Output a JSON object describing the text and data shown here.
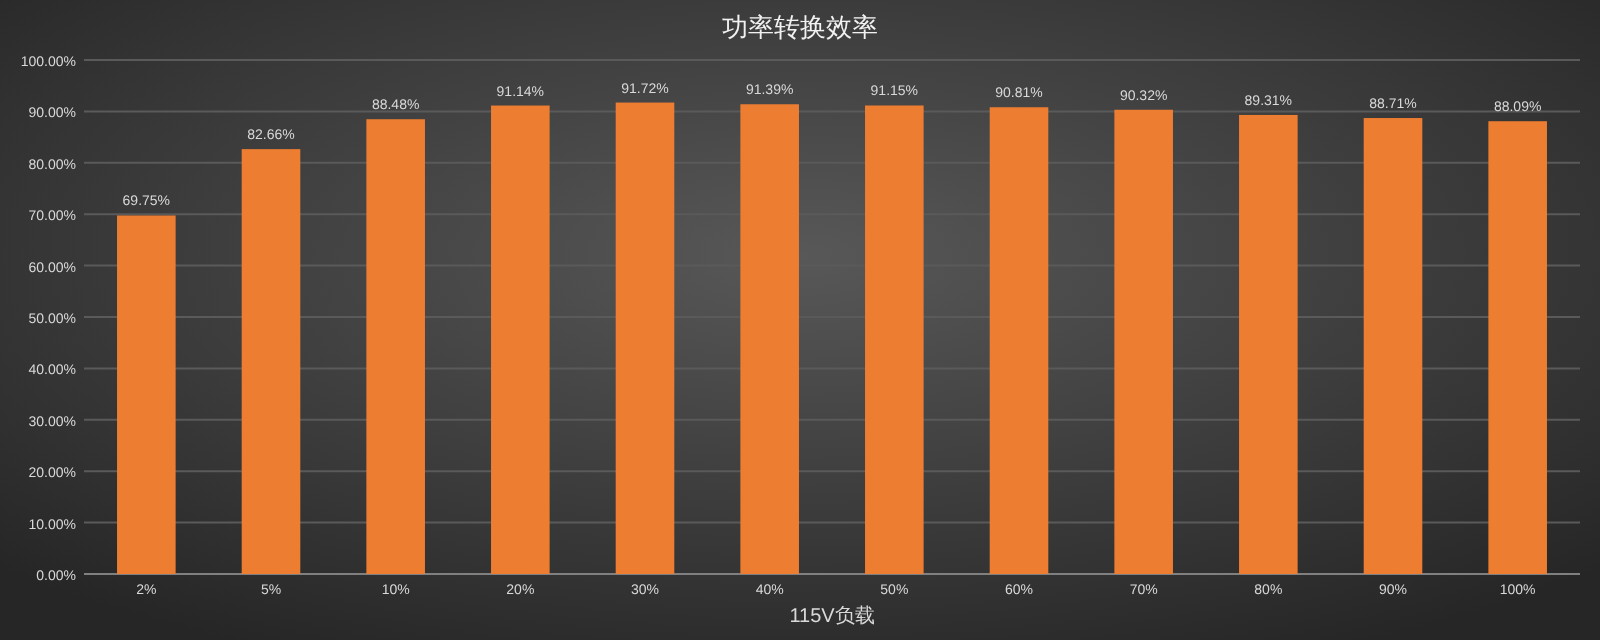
{
  "chart_data": {
    "type": "bar",
    "title": "功率转换效率",
    "xlabel": "115V负载",
    "categories": [
      "2%",
      "5%",
      "10%",
      "20%",
      "30%",
      "40%",
      "50%",
      "60%",
      "70%",
      "80%",
      "90%",
      "100%"
    ],
    "values": [
      69.75,
      82.66,
      88.48,
      91.14,
      91.72,
      91.39,
      91.15,
      90.81,
      90.32,
      89.31,
      88.71,
      88.09
    ],
    "value_labels": [
      "69.75%",
      "82.66%",
      "88.48%",
      "91.14%",
      "91.72%",
      "91.39%",
      "91.15%",
      "90.81%",
      "90.32%",
      "89.31%",
      "88.71%",
      "88.09%"
    ],
    "color": "#ed7d31",
    "ylim": [
      0,
      100
    ],
    "yticks": [
      {
        "value": 0,
        "label": "0.00%"
      },
      {
        "value": 10,
        "label": "10.00%"
      },
      {
        "value": 20,
        "label": "20.00%"
      },
      {
        "value": 30,
        "label": "30.00%"
      },
      {
        "value": 40,
        "label": "40.00%"
      },
      {
        "value": 50,
        "label": "50.00%"
      },
      {
        "value": 60,
        "label": "60.00%"
      },
      {
        "value": 70,
        "label": "70.00%"
      },
      {
        "value": 80,
        "label": "80.00%"
      },
      {
        "value": 90,
        "label": "90.00%"
      },
      {
        "value": 100,
        "label": "100.00%"
      }
    ],
    "grid": "y"
  }
}
